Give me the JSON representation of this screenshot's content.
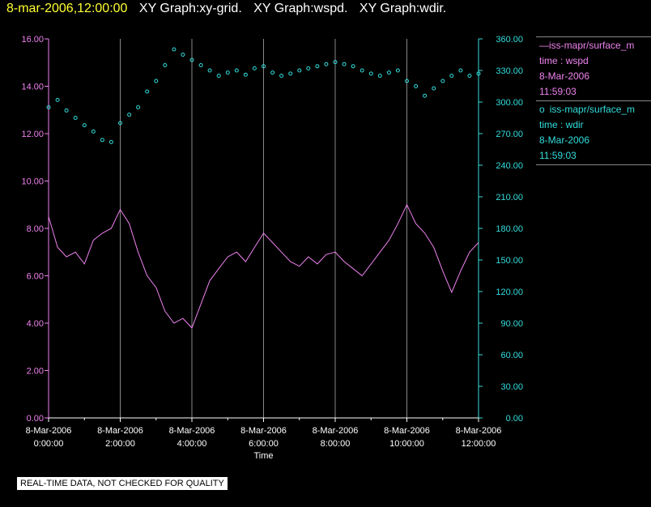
{
  "header": {
    "date_time": "8-mar-2006,12:00:00",
    "graphs": [
      "XY Graph:xy-grid.",
      "XY Graph:wspd.",
      "XY Graph:wdir."
    ]
  },
  "legend": {
    "series1": {
      "name": "iss-mapr/surface_m",
      "line": "time : wspd",
      "date": "8-Mar-2006",
      "time": "11:59:03",
      "symbol": "—"
    },
    "series2": {
      "name": "iss-mapr/surface_m",
      "line": "time : wdir",
      "date": "8-Mar-2006",
      "time": "11:59:03",
      "symbol": "o"
    }
  },
  "disclaimer": "REAL-TIME DATA, NOT CHECKED FOR QUALITY",
  "chart_data": {
    "type": "line",
    "xlabel": "Time",
    "x_ticks": [
      {
        "date": "8-Mar-2006",
        "time": "0:00:00"
      },
      {
        "date": "8-Mar-2006",
        "time": "2:00:00"
      },
      {
        "date": "8-Mar-2006",
        "time": "4:00:00"
      },
      {
        "date": "8-Mar-2006",
        "time": "6:00:00"
      },
      {
        "date": "8-Mar-2006",
        "time": "8:00:00"
      },
      {
        "date": "8-Mar-2006",
        "time": "10:00:00"
      },
      {
        "date": "8-Mar-2006",
        "time": "12:00:00"
      }
    ],
    "xlim_hours": [
      0,
      12
    ],
    "y_left": {
      "lim": [
        0,
        16
      ],
      "ticks": [
        "0.00",
        "2.00",
        "4.00",
        "6.00",
        "8.00",
        "10.00",
        "12.00",
        "14.00",
        "16.00"
      ],
      "color": "#ee82ee"
    },
    "y_right": {
      "lim": [
        0,
        360
      ],
      "ticks": [
        "0.00",
        "30.00",
        "60.00",
        "90.00",
        "120.00",
        "150.00",
        "180.00",
        "210.00",
        "240.00",
        "270.00",
        "300.00",
        "330.00",
        "360.00"
      ],
      "color": "#33dddd"
    },
    "grid": true,
    "series": [
      {
        "name": "time : wspd",
        "axis": "left",
        "style": "line",
        "color": "#ee82ee",
        "x": [
          0,
          0.25,
          0.5,
          0.75,
          1,
          1.25,
          1.5,
          1.75,
          2,
          2.25,
          2.5,
          2.75,
          3,
          3.25,
          3.5,
          3.75,
          4,
          4.25,
          4.5,
          4.75,
          5,
          5.25,
          5.5,
          5.75,
          6,
          6.25,
          6.5,
          6.75,
          7,
          7.25,
          7.5,
          7.75,
          8,
          8.25,
          8.5,
          8.75,
          9,
          9.25,
          9.5,
          9.75,
          10,
          10.25,
          10.5,
          10.75,
          11,
          11.25,
          11.5,
          11.75,
          12
        ],
        "y": [
          8.5,
          7.2,
          6.8,
          7.0,
          6.5,
          7.5,
          7.8,
          8.0,
          8.8,
          8.2,
          7.0,
          6.0,
          5.5,
          4.5,
          4.0,
          4.2,
          3.8,
          4.8,
          5.8,
          6.3,
          6.8,
          7.0,
          6.6,
          7.2,
          7.8,
          7.4,
          7.0,
          6.6,
          6.4,
          6.8,
          6.5,
          6.9,
          7.0,
          6.6,
          6.3,
          6.0,
          6.5,
          7.0,
          7.5,
          8.2,
          9.0,
          8.2,
          7.8,
          7.2,
          6.2,
          5.3,
          6.2,
          7.0,
          7.4
        ]
      },
      {
        "name": "time : wdir",
        "axis": "right",
        "style": "markers",
        "color": "#33dddd",
        "x": [
          0,
          0.25,
          0.5,
          0.75,
          1,
          1.25,
          1.5,
          1.75,
          2,
          2.25,
          2.5,
          2.75,
          3,
          3.25,
          3.5,
          3.75,
          4,
          4.25,
          4.5,
          4.75,
          5,
          5.25,
          5.5,
          5.75,
          6,
          6.25,
          6.5,
          6.75,
          7,
          7.25,
          7.5,
          7.75,
          8,
          8.25,
          8.5,
          8.75,
          9,
          9.25,
          9.5,
          9.75,
          10,
          10.25,
          10.5,
          10.75,
          11,
          11.25,
          11.5,
          11.75,
          12
        ],
        "y": [
          295,
          302,
          292,
          285,
          278,
          272,
          264,
          262,
          280,
          288,
          295,
          310,
          320,
          335,
          350,
          345,
          340,
          335,
          330,
          325,
          328,
          330,
          326,
          332,
          334,
          328,
          325,
          327,
          330,
          332,
          334,
          336,
          338,
          336,
          334,
          330,
          327,
          325,
          328,
          330,
          320,
          315,
          306,
          313,
          320,
          325,
          330,
          325,
          327
        ]
      }
    ]
  }
}
